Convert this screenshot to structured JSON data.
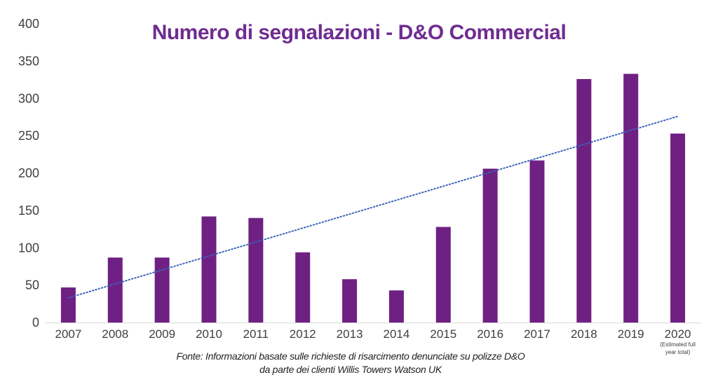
{
  "chart_data": {
    "type": "bar",
    "title": "Numero di segnalazioni - D&O Commercial",
    "categories": [
      "2007",
      "2008",
      "2009",
      "2010",
      "2011",
      "2012",
      "2013",
      "2014",
      "2015",
      "2016",
      "2017",
      "2018",
      "2019",
      "2020"
    ],
    "category_note": {
      "category": "2020",
      "lines": [
        "(Estimated full",
        "year total)"
      ]
    },
    "series": [
      {
        "name": "Segnalazioni",
        "values": [
          47,
          87,
          87,
          142,
          140,
          94,
          58,
          43,
          128,
          206,
          217,
          326,
          333,
          253
        ]
      }
    ],
    "trendline": {
      "type": "linear",
      "style": "dotted",
      "color": "#3a63b8",
      "start": 33,
      "end": 276
    },
    "ylim": [
      0,
      400
    ],
    "yticks": [
      0,
      50,
      100,
      150,
      200,
      250,
      300,
      350,
      400
    ],
    "xlabel": "",
    "ylabel": "",
    "colors": {
      "bar": "#6f2083",
      "title": "#6f2c91",
      "axis_text": "#404040"
    }
  },
  "source": {
    "line1": "Fonte: Informazioni basate sulle richieste di risarcimento denunciate su polizze D&O",
    "line2": "da parte dei clienti Willis Towers Watson UK"
  }
}
